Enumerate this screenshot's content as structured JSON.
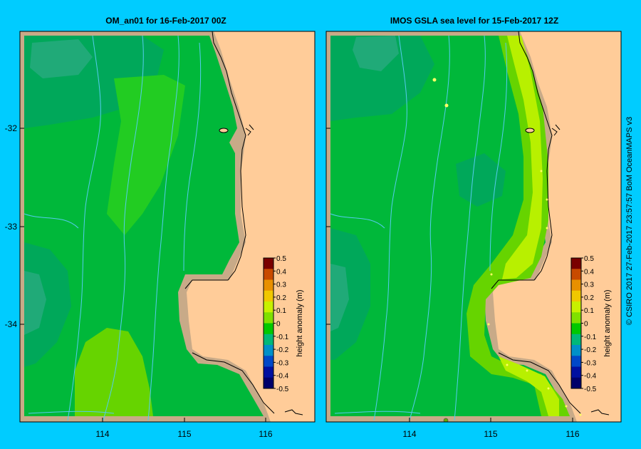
{
  "panels": [
    {
      "title": "OM_an01  for 16-Feb-2017 00Z"
    },
    {
      "title": "IMOS GSLA sea level  for 15-Feb-2017 12Z"
    }
  ],
  "axes": {
    "lat_ticks": [
      "-32",
      "-33",
      "-34"
    ],
    "lon_ticks": [
      "114",
      "115",
      "116"
    ]
  },
  "colorbar": {
    "label": "height anomaly (m)",
    "ticks": [
      "0.5",
      "0.4",
      "0.3",
      "0.2",
      "0.1",
      "0",
      "-0.1",
      "-0.2",
      "-0.3",
      "-0.4",
      "-0.5"
    ],
    "colors": [
      "#7a0000",
      "#c84a00",
      "#e89000",
      "#f0c800",
      "#c8f000",
      "#80e000",
      "#00c800",
      "#00b878",
      "#0090c8",
      "#0048c8",
      "#0010a0",
      "#00006a"
    ]
  },
  "credit": "© CSIRO 2017   27-Feb-2017 23:57:57 BoM OceanMAPS v3",
  "map_colors": {
    "land": "#ffcc99",
    "coast": "#c8aa88",
    "bathy_contour": "#55ccee",
    "frame": "#000000"
  }
}
